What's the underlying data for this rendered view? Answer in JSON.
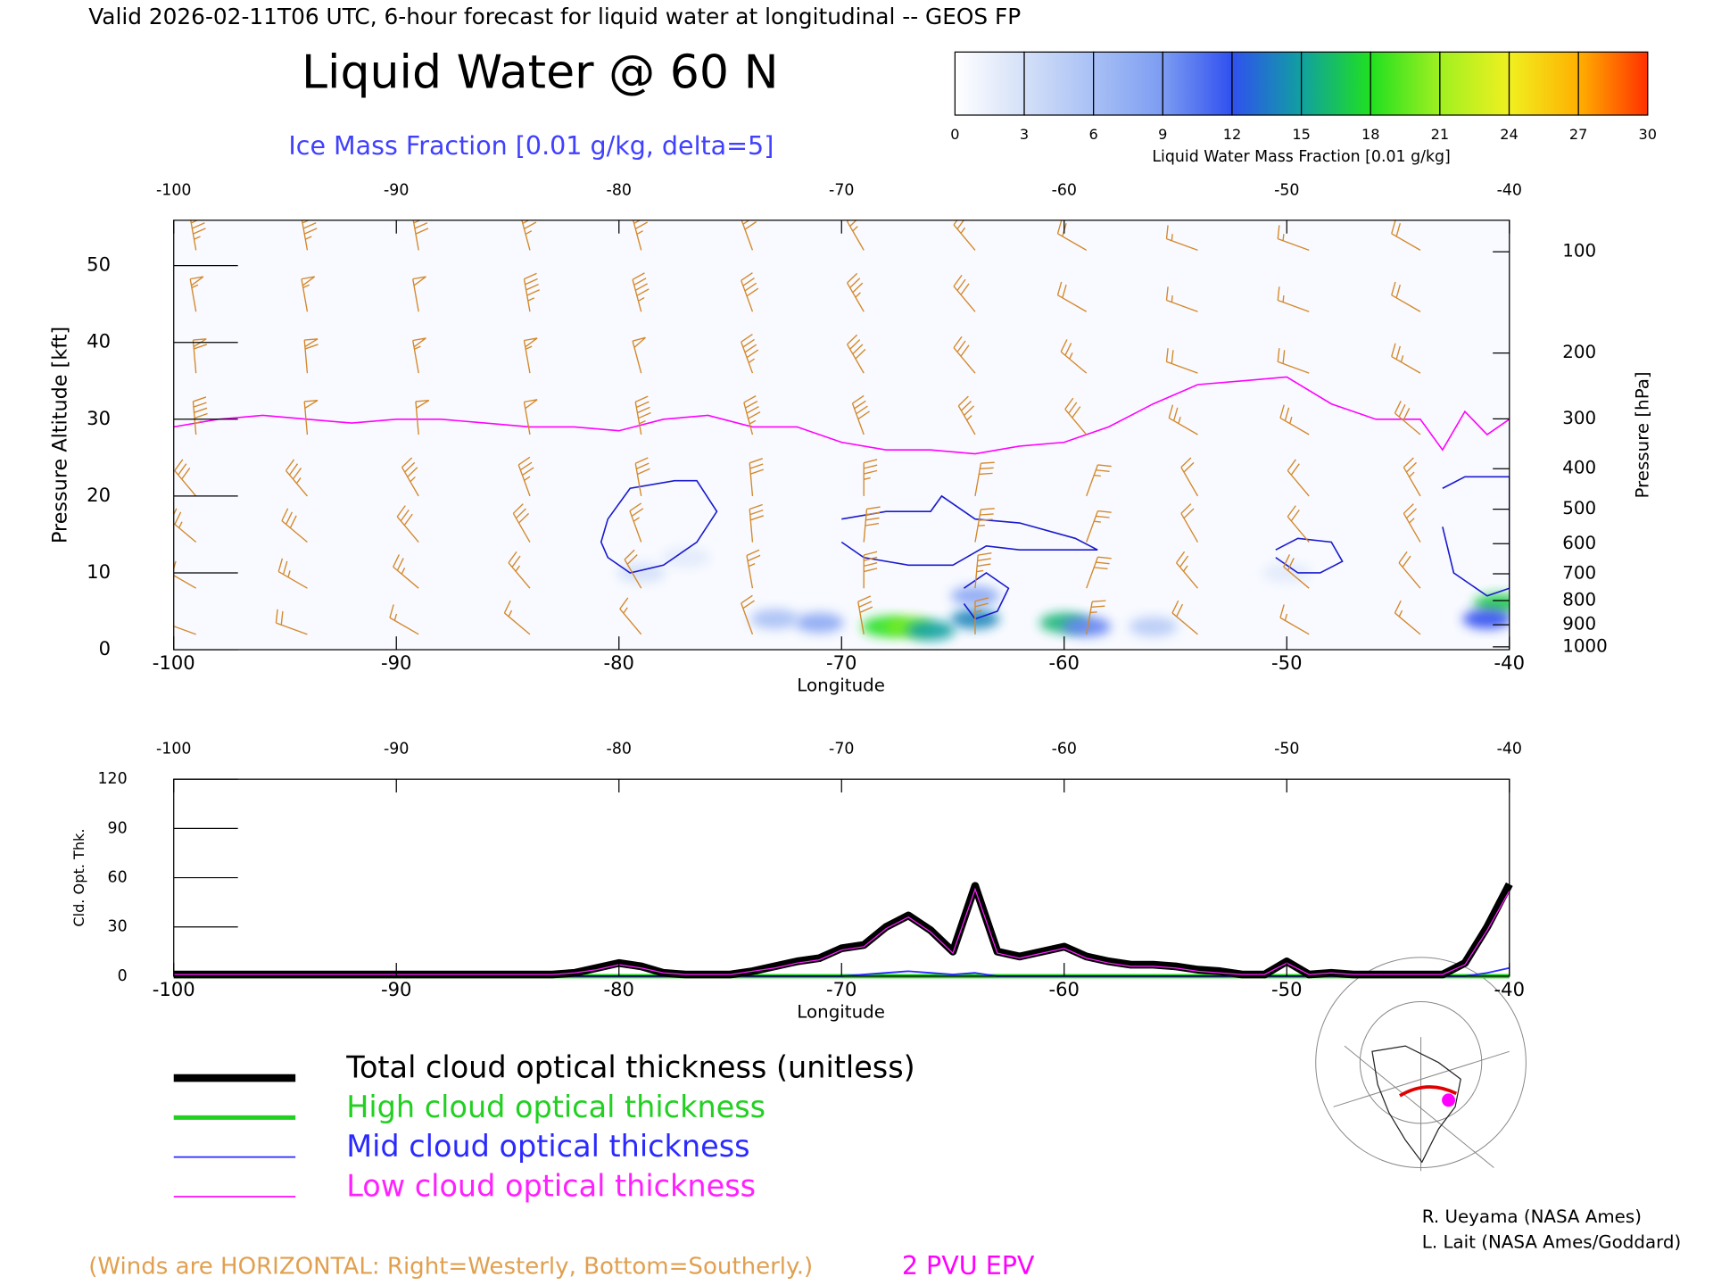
{
  "header": {
    "title_line": "Valid 2026-02-11T06 UTC, 6-hour forecast for liquid water at longitudinal -- GEOS FP",
    "title": "Liquid Water @ 60 N",
    "subtitle": "Ice Mass Fraction [0.01 g/kg, delta=5]"
  },
  "colorbar": {
    "label": "Liquid Water Mass Fraction [0.01 g/kg]",
    "levels": [
      0,
      3,
      6,
      9,
      12,
      15,
      18,
      21,
      24,
      27,
      30
    ],
    "colors": [
      "#ffffff",
      "#d4e0f8",
      "#a8c0f5",
      "#7c9cf2",
      "#3050f0",
      "#10a0a0",
      "#20e020",
      "#a0f020",
      "#f0f020",
      "#ffb000",
      "#ff3000"
    ]
  },
  "notes": {
    "winds": "(Winds are HORIZONTAL: Right=Westerly, Bottom=Southerly.)",
    "epv": "2 PVU EPV"
  },
  "credits": [
    "R. Ueyama (NASA Ames)",
    "L. Lait (NASA Ames/Goddard)"
  ],
  "chart_data": [
    {
      "type": "cross-section",
      "xlabel": "Longitude",
      "ylabel": "Pressure Altitude [kft]",
      "y2label": "Pressure [hPa]",
      "xlim": [
        -100,
        -40
      ],
      "xticks": [
        -100,
        -90,
        -80,
        -70,
        -60,
        -50,
        -40
      ],
      "ylim": [
        0,
        55.9
      ],
      "yticks": [
        0,
        10,
        20,
        30,
        40,
        50
      ],
      "y2scale": "pressure-altitude",
      "y2ticks": [
        100,
        200,
        300,
        400,
        500,
        600,
        700,
        800,
        900,
        1000
      ],
      "liquid_water": {
        "lon": [
          -68,
          -67,
          -66,
          -64,
          -60,
          -59,
          -71,
          -73,
          -56,
          -40.5,
          -41,
          -79,
          -77,
          -64,
          -50
        ],
        "kft": [
          3,
          3,
          2.5,
          4,
          3.5,
          3,
          3.5,
          4,
          3,
          6,
          4,
          10,
          12,
          7,
          10
        ],
        "values": [
          18,
          20,
          15,
          14,
          16,
          10,
          8,
          6,
          5,
          17,
          12,
          3,
          2,
          8,
          2
        ]
      },
      "ice_contours": {
        "color": "#1a1acc",
        "lines": [
          {
            "lon": [
              -80.5,
              -79.5,
              -77.5,
              -76.5,
              -75.6,
              -76.5,
              -78,
              -79.5,
              -80.5,
              -80.8,
              -80.5
            ],
            "kft": [
              17,
              21,
              22,
              22,
              18,
              14,
              11,
              10,
              12,
              14,
              17
            ]
          },
          {
            "lon": [
              -70,
              -68,
              -66,
              -65.5,
              -64,
              -62,
              -59.5,
              -58.5,
              -60,
              -62,
              -63.5,
              -65,
              -67,
              -69,
              -70
            ],
            "kft": [
              17,
              18,
              18,
              20,
              17,
              16.5,
              14.5,
              13,
              13,
              13,
              13.5,
              11,
              11,
              12,
              14
            ]
          },
          {
            "lon": [
              -50.5,
              -49.5,
              -48,
              -47.5,
              -48.5,
              -49.5,
              -50.5
            ],
            "kft": [
              13,
              14.5,
              14,
              11.5,
              10,
              10,
              12
            ]
          },
          {
            "lon": [
              -43,
              -42,
              -40,
              -40,
              -41,
              -42.5,
              -43
            ],
            "kft": [
              21,
              22.5,
              22.5,
              8,
              7,
              10,
              16
            ]
          },
          {
            "lon": [
              -64.5,
              -63.5,
              -62.5,
              -63,
              -64,
              -64.5
            ],
            "kft": [
              8,
              10,
              8,
              5,
              4,
              6
            ]
          }
        ]
      },
      "epv": {
        "color": "#ff00ff",
        "lon": [
          -100,
          -98,
          -96,
          -94,
          -92,
          -90,
          -88,
          -86,
          -84,
          -82,
          -80,
          -78,
          -76,
          -74,
          -72,
          -70,
          -68,
          -66,
          -64,
          -62,
          -60,
          -58,
          -56,
          -54,
          -52,
          -50,
          -48,
          -46,
          -44,
          -43,
          -42,
          -41,
          -40
        ],
        "kft": [
          29,
          30,
          30.5,
          30,
          29.5,
          30,
          30,
          29.5,
          29,
          29,
          28.5,
          30,
          30.5,
          29,
          29,
          27,
          26,
          26,
          25.5,
          26.5,
          27,
          29,
          32,
          34.5,
          35,
          35.5,
          32,
          30,
          30,
          26,
          31,
          28,
          30
        ]
      },
      "winds": {
        "color": "#d4882a",
        "lon": [
          -99,
          -94,
          -89,
          -84,
          -79,
          -74,
          -69,
          -64,
          -59,
          -54,
          -49,
          -44
        ],
        "kft": [
          52,
          44,
          36,
          28,
          20,
          14,
          8,
          2
        ],
        "speed": [
          [
            45,
            45,
            40,
            35,
            35,
            30,
            25,
            25,
            20,
            15,
            15,
            20
          ],
          [
            55,
            55,
            50,
            45,
            45,
            40,
            35,
            30,
            20,
            15,
            15,
            20
          ],
          [
            60,
            60,
            55,
            55,
            50,
            45,
            40,
            30,
            25,
            20,
            20,
            25
          ],
          [
            45,
            50,
            50,
            50,
            45,
            45,
            40,
            35,
            30,
            25,
            25,
            30
          ],
          [
            30,
            35,
            35,
            35,
            30,
            30,
            35,
            30,
            25,
            20,
            20,
            25
          ],
          [
            25,
            30,
            30,
            30,
            25,
            30,
            40,
            35,
            25,
            20,
            20,
            25
          ],
          [
            20,
            25,
            25,
            25,
            20,
            25,
            40,
            35,
            30,
            25,
            20,
            20
          ],
          [
            15,
            20,
            15,
            15,
            15,
            20,
            30,
            25,
            25,
            20,
            15,
            15
          ]
        ],
        "direction": [
          [
            350,
            350,
            350,
            345,
            345,
            340,
            330,
            320,
            300,
            290,
            290,
            300
          ],
          [
            350,
            350,
            350,
            350,
            345,
            340,
            330,
            320,
            300,
            290,
            290,
            300
          ],
          [
            355,
            355,
            350,
            350,
            345,
            340,
            330,
            320,
            310,
            290,
            290,
            300
          ],
          [
            355,
            355,
            355,
            350,
            350,
            345,
            340,
            330,
            320,
            300,
            300,
            310
          ],
          [
            320,
            320,
            330,
            340,
            350,
            355,
            0,
            10,
            20,
            330,
            320,
            330
          ],
          [
            310,
            310,
            320,
            330,
            340,
            355,
            5,
            10,
            20,
            330,
            320,
            330
          ],
          [
            300,
            300,
            310,
            320,
            330,
            350,
            0,
            5,
            20,
            320,
            310,
            320
          ],
          [
            290,
            290,
            300,
            310,
            320,
            340,
            350,
            0,
            10,
            310,
            300,
            310
          ]
        ]
      }
    },
    {
      "type": "line",
      "xlabel": "Longitude",
      "ylabel": "Cld. Opt. Thk.",
      "xlim": [
        -100,
        -40
      ],
      "xticks": [
        -100,
        -90,
        -80,
        -70,
        -60,
        -50,
        -40
      ],
      "ylim": [
        0,
        120
      ],
      "yticks": [
        0,
        30,
        60,
        90,
        120
      ],
      "x": [
        -100,
        -99,
        -98,
        -97,
        -96,
        -95,
        -94,
        -93,
        -92,
        -91,
        -90,
        -89,
        -88,
        -87,
        -86,
        -85,
        -84,
        -83,
        -82,
        -81,
        -80,
        -79,
        -78,
        -77,
        -76,
        -75,
        -74,
        -73,
        -72,
        -71,
        -70,
        -69,
        -68,
        -67,
        -66,
        -65,
        -64,
        -63,
        -62,
        -61,
        -60,
        -59,
        -58,
        -57,
        -56,
        -55,
        -54,
        -53,
        -52,
        -51,
        -50,
        -49,
        -48,
        -47,
        -46,
        -45,
        -44,
        -43,
        -42,
        -41,
        -40
      ],
      "series": [
        {
          "name": "Total cloud optical thickness (unitless)",
          "color": "#000000",
          "width": 7,
          "values": [
            1,
            1,
            1,
            1,
            1,
            1,
            1,
            1,
            1,
            1,
            1,
            1,
            1,
            1,
            1,
            1,
            1,
            1,
            2,
            5,
            8,
            6,
            2,
            1,
            1,
            1,
            3,
            6,
            9,
            11,
            17,
            19,
            30,
            37,
            28,
            15,
            55,
            15,
            12,
            15,
            18,
            12,
            9,
            7,
            7,
            6,
            4,
            3,
            1,
            1,
            9,
            1,
            2,
            1,
            1,
            1,
            1,
            1,
            8,
            30,
            56
          ]
        },
        {
          "name": "High cloud optical thickness",
          "color": "#22d022",
          "width": 4,
          "values": [
            0,
            0,
            0,
            0,
            0,
            0,
            0,
            0,
            0,
            0,
            0,
            0,
            0,
            0,
            0,
            0,
            0,
            0,
            0,
            0,
            0,
            0,
            0,
            0,
            0,
            0,
            0,
            0,
            0,
            0,
            0,
            0,
            0,
            0,
            0,
            0,
            0,
            0,
            0,
            0,
            0,
            0,
            0,
            0,
            0,
            0,
            0,
            0,
            0,
            0,
            0,
            0,
            0,
            0,
            0,
            0,
            0,
            0,
            0,
            0,
            0
          ]
        },
        {
          "name": "Mid cloud optical thickness",
          "color": "#2a2aff",
          "width": 1.5,
          "values": [
            0,
            0,
            0,
            0,
            0,
            0,
            0,
            0,
            0,
            0,
            0,
            0,
            0,
            0,
            0,
            0,
            0,
            0,
            0,
            0,
            0,
            0,
            0,
            0,
            0,
            0,
            0,
            0,
            0,
            0,
            0,
            1,
            2,
            3,
            2,
            1,
            2,
            0,
            0,
            0,
            0,
            0,
            0,
            0,
            0,
            0,
            0,
            0,
            0,
            0,
            0,
            0,
            0,
            0,
            0,
            0,
            0,
            0,
            0,
            2,
            5
          ]
        },
        {
          "name": "Low cloud optical thickness",
          "color": "#ff20ff",
          "width": 1.5,
          "values": [
            1,
            1,
            1,
            1,
            1,
            1,
            1,
            1,
            1,
            1,
            1,
            1,
            1,
            1,
            1,
            1,
            1,
            1,
            2,
            4,
            7,
            5,
            2,
            1,
            1,
            1,
            3,
            5,
            8,
            10,
            16,
            18,
            29,
            36,
            27,
            14,
            53,
            14,
            11,
            14,
            17,
            11,
            8,
            6,
            6,
            5,
            3,
            2,
            1,
            1,
            8,
            1,
            2,
            1,
            1,
            1,
            1,
            1,
            7,
            28,
            52
          ]
        }
      ]
    }
  ]
}
